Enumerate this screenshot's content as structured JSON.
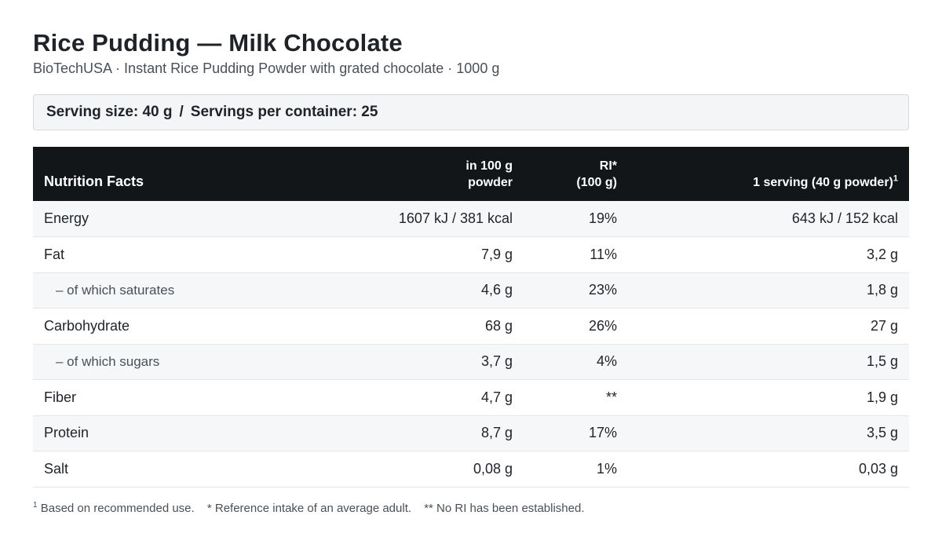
{
  "product": {
    "title": "Rice Pudding — Milk Chocolate",
    "subtitle": "BioTechUSA · Instant Rice Pudding Powder with grated chocolate · 1000 g"
  },
  "serving": {
    "size": "Serving size: 40 g",
    "separator": "/",
    "per_container": "Servings per container: 25"
  },
  "table": {
    "headers": {
      "nutrient": "Nutrition Facts",
      "per100_line1": "in 100 g",
      "per100_line2": "powder",
      "ri_line1": "RI*",
      "ri_line2": "(100 g)",
      "serving": "1 serving (40 g powder)",
      "serving_sup": "1"
    },
    "rows": [
      {
        "name": "Energy",
        "per100": "1607 kJ / 381 kcal",
        "ri": "19%",
        "serving": "643 kJ / 152 kcal"
      },
      {
        "name": "Fat",
        "per100": "7,9 g",
        "ri": "11%",
        "serving": "3,2 g"
      },
      {
        "name": "– of which saturates",
        "per100": "4,6 g",
        "ri": "23%",
        "serving": "1,8 g"
      },
      {
        "name": "Carbohydrate",
        "per100": "68 g",
        "ri": "26%",
        "serving": "27 g"
      },
      {
        "name": "– of which sugars",
        "per100": "3,7 g",
        "ri": "4%",
        "serving": "1,5 g"
      },
      {
        "name": "Fiber",
        "per100": "4,7 g",
        "ri": "**",
        "serving": "1,9 g"
      },
      {
        "name": "Protein",
        "per100": "8,7 g",
        "ri": "17%",
        "serving": "3,5 g"
      },
      {
        "name": "Salt",
        "per100": "0,08 g",
        "ri": "1%",
        "serving": "0,03 g"
      }
    ]
  },
  "footnotes": {
    "sup": "1",
    "note1": "Based on recommended use.",
    "note2": "* Reference intake of an average adult.",
    "note3": "** No RI has been established."
  }
}
